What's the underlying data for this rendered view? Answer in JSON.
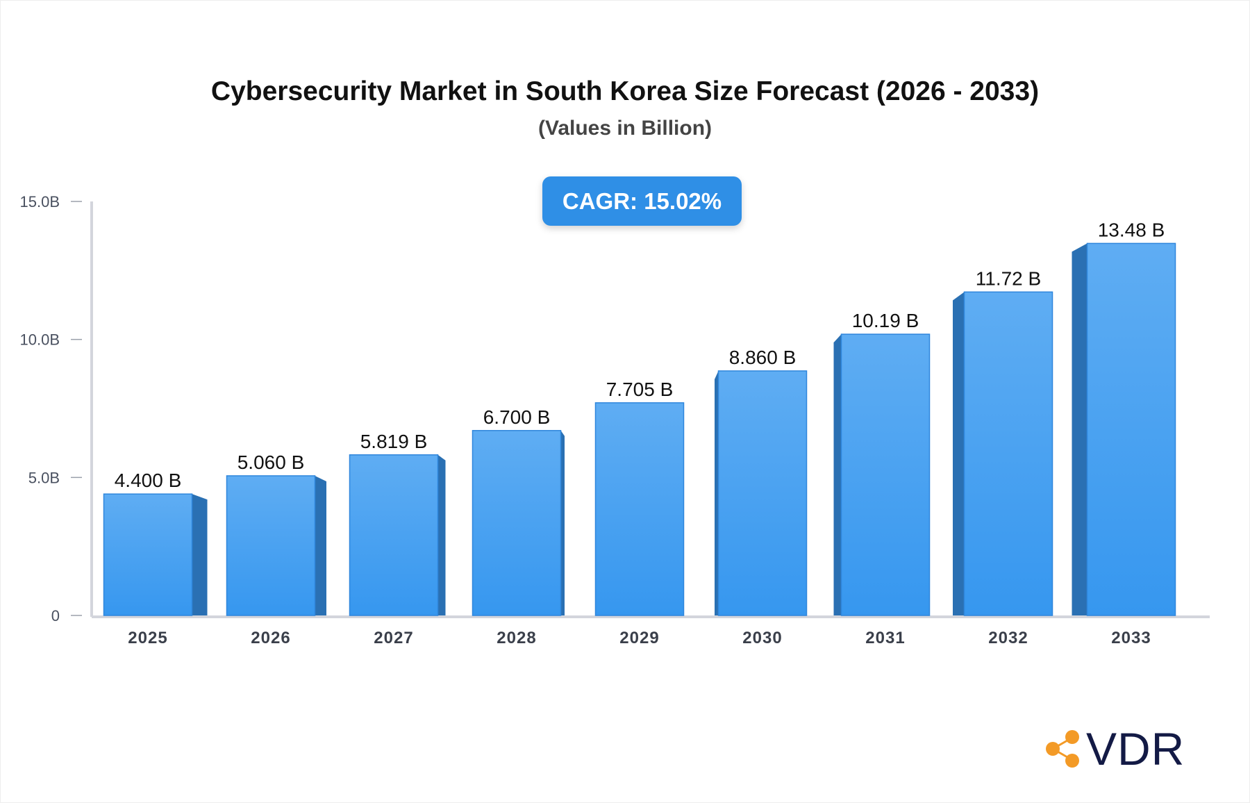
{
  "chart_data": {
    "type": "bar",
    "title": "Cybersecurity Market in South Korea Size Forecast (2026 - 2033)",
    "subtitle": "(Values in Billion)",
    "categories": [
      "2025",
      "2026",
      "2027",
      "2028",
      "2029",
      "2030",
      "2031",
      "2032",
      "2033"
    ],
    "values": [
      4.4,
      5.06,
      5.819,
      6.7,
      7.705,
      8.86,
      10.19,
      11.72,
      13.48
    ],
    "data_labels": [
      "4.400 B",
      "5.060 B",
      "5.819 B",
      "6.700 B",
      "7.705 B",
      "8.860 B",
      "10.19 B",
      "11.72 B",
      "13.48 B"
    ],
    "ylim": [
      0,
      15
    ],
    "yticks": [
      0,
      5,
      10,
      15
    ],
    "ytick_labels": [
      "0",
      "5.0B",
      "10.0B",
      "15.0B"
    ],
    "xlabel": "",
    "ylabel": "",
    "grid": false,
    "bar_color": "#3d9af0",
    "bar_side_color": "#2a70b3"
  },
  "annotation": {
    "cagr": "CAGR: 15.02%"
  },
  "logo": {
    "text": "VDR",
    "icon": "share-nodes-icon",
    "icon_color": "#f39a26",
    "text_color": "#131a45"
  }
}
